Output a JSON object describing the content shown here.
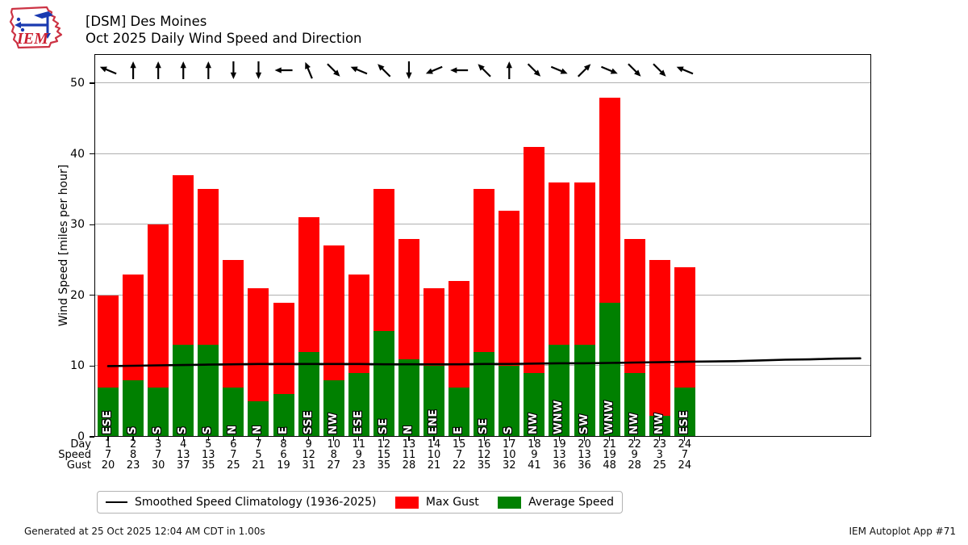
{
  "logo": {
    "label": "IEM"
  },
  "header": {
    "title_line1": "[DSM] Des Moines",
    "title_line2": "Oct 2025 Daily Wind Speed and Direction"
  },
  "chart_data": {
    "type": "bar",
    "station": "[DSM] Des Moines",
    "title": "Oct 2025 Daily Wind Speed and Direction",
    "ylabel": "Wind Speed [miles per hour]",
    "ylim": [
      0,
      54
    ],
    "yticks": [
      0,
      10,
      20,
      30,
      40,
      50
    ],
    "grid": "horizontal",
    "categories": [
      1,
      2,
      3,
      4,
      5,
      6,
      7,
      8,
      9,
      10,
      11,
      12,
      13,
      14,
      15,
      16,
      17,
      18,
      19,
      20,
      21,
      22,
      23,
      24
    ],
    "series": [
      {
        "name": "Max Gust",
        "color": "#ff0000",
        "values": [
          20,
          23,
          30,
          37,
          35,
          25,
          21,
          19,
          31,
          27,
          23,
          35,
          28,
          21,
          22,
          35,
          32,
          41,
          36,
          36,
          48,
          28,
          25,
          24
        ]
      },
      {
        "name": "Average Speed",
        "color": "#008000",
        "values": [
          7,
          8,
          7,
          13,
          13,
          7,
          5,
          6,
          12,
          8,
          9,
          15,
          11,
          10,
          7,
          12,
          10,
          9,
          13,
          13,
          19,
          9,
          3,
          7
        ]
      }
    ],
    "wind_directions": [
      "ESE",
      "S",
      "S",
      "S",
      "S",
      "N",
      "N",
      "E",
      "SSE",
      "NW",
      "ESE",
      "SE",
      "N",
      "ENE",
      "E",
      "SE",
      "S",
      "NW",
      "WNW",
      "SW",
      "WNW",
      "NW",
      "NW",
      "ESE"
    ],
    "arrow_convention": "arrows point toward direction wind is blowing to (direction + 180)",
    "climatology_line": {
      "name": "Smoothed Speed Climatology (1936-2025)",
      "color": "#000000",
      "days": [
        1,
        2,
        3,
        4,
        5,
        6,
        7,
        8,
        9,
        10,
        11,
        12,
        13,
        14,
        15,
        16,
        17,
        18,
        19,
        20,
        21,
        22,
        23,
        24,
        25,
        26,
        27,
        28,
        29,
        30,
        31
      ],
      "values": [
        10.0,
        10.05,
        10.1,
        10.15,
        10.2,
        10.25,
        10.3,
        10.3,
        10.3,
        10.3,
        10.3,
        10.25,
        10.25,
        10.25,
        10.25,
        10.3,
        10.3,
        10.35,
        10.4,
        10.4,
        10.45,
        10.5,
        10.55,
        10.6,
        10.65,
        10.7,
        10.8,
        10.9,
        10.95,
        11.05,
        11.1
      ]
    },
    "xaxis": {
      "row_labels": [
        "Day",
        "Speed",
        "Gust"
      ]
    },
    "legend_position": "bottom"
  },
  "legend": {
    "climatology_label": "Smoothed Speed Climatology (1936-2025)",
    "max_gust_label": "Max Gust",
    "avg_speed_label": "Average Speed",
    "max_gust_color": "#ff0000",
    "avg_speed_color": "#008000"
  },
  "footer": {
    "left": "Generated at 25 Oct 2025 12:04 AM CDT in 1.00s",
    "right": "IEM Autoplot App #71"
  }
}
